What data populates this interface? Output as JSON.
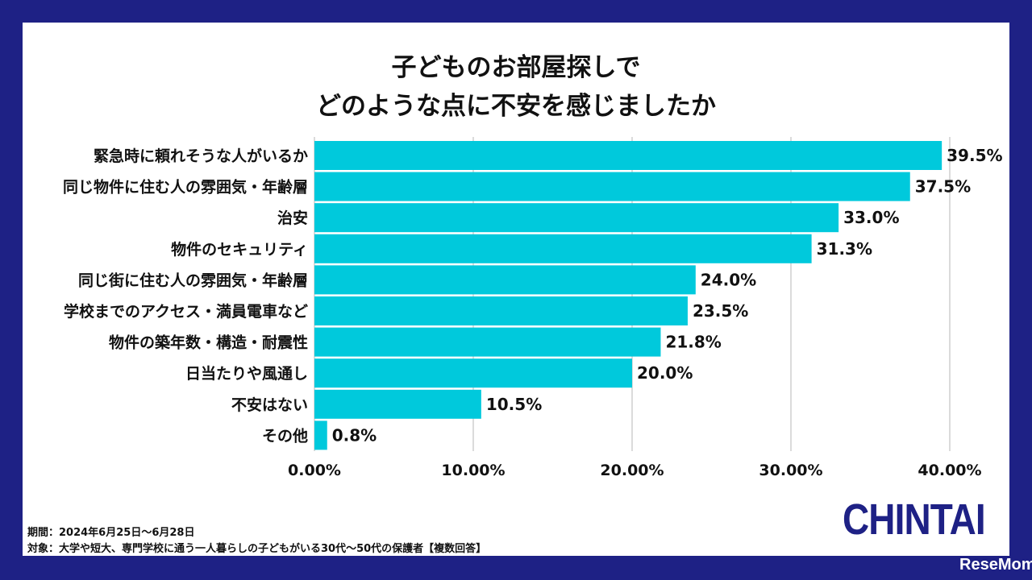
{
  "title_line1": "子どものお部屋探しで",
  "title_line2": "どのような点に不安を感じましたか",
  "chart_data": {
    "type": "bar",
    "orientation": "horizontal",
    "categories": [
      "緊急時に頼れそうな人がいるか",
      "同じ物件に住む人の雰囲気・年齢層",
      "治安",
      "物件のセキュリティ",
      "同じ街に住む人の雰囲気・年齢層",
      "学校までのアクセス・満員電車など",
      "物件の築年数・構造・耐震性",
      "日当たりや風通し",
      "不安はない",
      "その他"
    ],
    "values": [
      39.5,
      37.5,
      33.0,
      31.3,
      24.0,
      23.5,
      21.8,
      20.0,
      10.5,
      0.8
    ],
    "data_labels": [
      "39.5%",
      "37.5%",
      "33.0%",
      "31.3%",
      "24.0%",
      "23.5%",
      "21.8%",
      "20.0%",
      "10.5%",
      "0.8%"
    ],
    "xlim": [
      0,
      40
    ],
    "xticks": [
      0,
      10,
      20,
      30,
      40
    ],
    "xtick_labels": [
      "0.00%",
      "10.00%",
      "20.00%",
      "30.00%",
      "40.00%"
    ],
    "grid": true,
    "bar_color": "#00c9dc"
  },
  "notes": {
    "period": "期間：2024年6月25日～6月28日",
    "target": "対象：大学や短大、専門学校に通う一人暮らしの子どもがいる30代～50代の保護者【複数回答】"
  },
  "logo": "CHINTAI",
  "watermark": "ReseMom"
}
